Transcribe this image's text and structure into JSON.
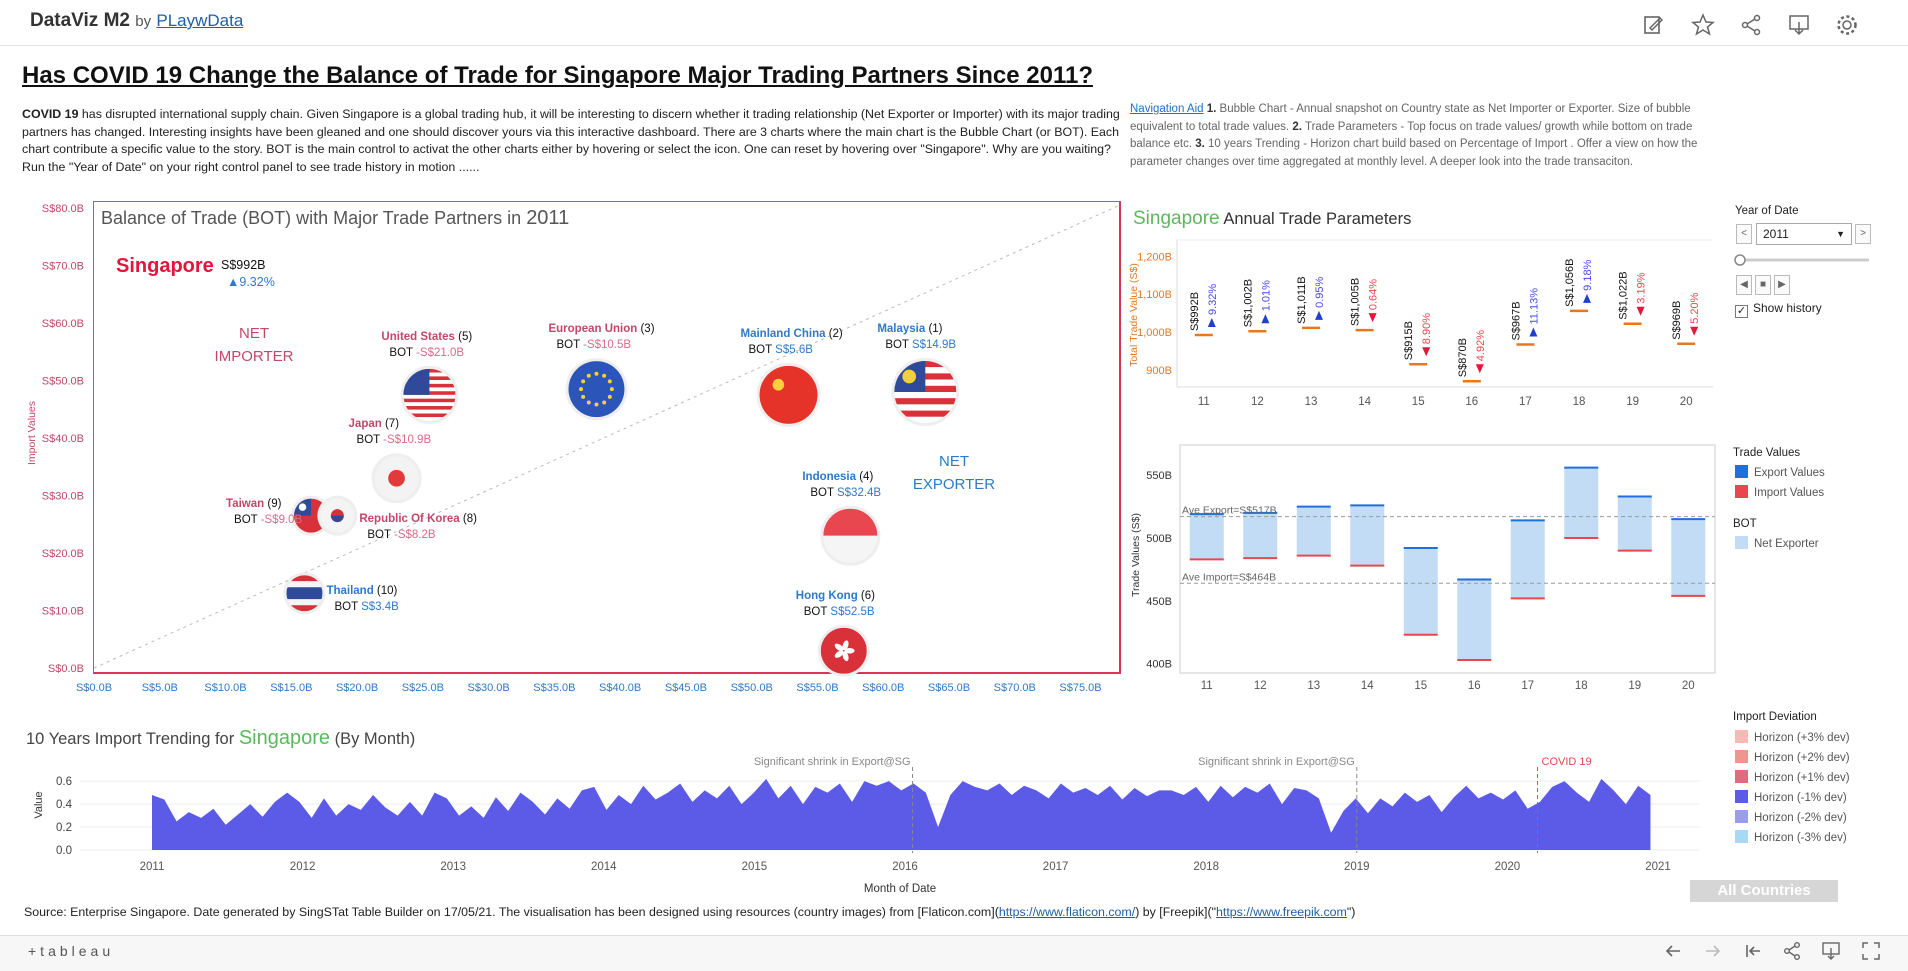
{
  "header": {
    "brand": "DataViz M2",
    "by": "by",
    "author": "PLaywData"
  },
  "dashboard": {
    "title": "Has COVID 19 Change the Balance of Trade for Singapore Major Trading Partners Since 2011?",
    "intro_lead": "COVID 19",
    "intro": " has disrupted international supply chain. Given Singapore  is a global trading hub, it will be interesting to discern whether it trading relationship (Net Exporter or Importer) with its major trading partners has changed.  Interesting insights have been gleaned and one should discover yours via this interactive dashboard.  There are 3 charts where the main chart is the Bubble Chart (or BOT). Each chart contribute a specific value to the story. BOT is the main control to activat the other charts either by hovering or select the icon. One can reset by hovering over \"Singapore\". Why are you waiting?  Run the \"Year of Date\" on your right control panel to see trade history in motion ......",
    "nav_link": "Navigation Aid",
    "nav_n1": "1.",
    "nav_t1": " Bubble Chart - Annual snapshot on Country state as Net Importer or Exporter.  Size of bubble equivalent to total trade values. ",
    "nav_n2": "2.",
    "nav_t2": " Trade Parameters - Top focus on trade values/ growth while bottom on trade balance etc. ",
    "nav_n3": "3.",
    "nav_t3": " 10 years Trending - Horizon chart build based on Percentage of Import . Offer a view on how the parameter changes over time aggregated at monthly level. A deeper look into the trade transaciton.",
    "source_a": "Source: Enterprise Singapore. Date generated by SingSTat Table Builder on 17/05/21. The visualisation has been designed using resources (country images) from [Flaticon.com](",
    "source_u1": "https://www.flaticon.com/",
    "source_b": ") by [Freepik](\"",
    "source_u2": "https://www.freepik.com",
    "source_c": "\")",
    "all_countries": "All Countries"
  },
  "controls": {
    "year_label": "Year of Date",
    "year_value": "2011",
    "show_history": "Show history",
    "check_mark": "✓",
    "prev": "<",
    "next": ">",
    "back": "◀",
    "stop": "■",
    "play": "▶"
  },
  "legends": {
    "trade_values_title": "Trade Values",
    "export": "Export Values",
    "import": "Import Values",
    "bot_title": "BOT",
    "net_exporter": "Net Exporter",
    "import_dev_title": "Import Deviation",
    "horizon": [
      "Horizon (+3% dev)",
      "Horizon (+2% dev)",
      "Horizon (+1% dev)",
      "Horizon (-1% dev)",
      "Horizon (-2% dev)",
      "Horizon (-3% dev)"
    ]
  },
  "colors": {
    "export": "#1f6fdc",
    "import": "#e8474f",
    "net_exporter": "#c3dcf5",
    "horizon": [
      "#f6b9b4",
      "#ef958f",
      "#e06b7e",
      "#5b5be8",
      "#9b9bf0",
      "#a9d8f7"
    ],
    "pink": "#c2476a",
    "blue": "#2e79c9"
  },
  "footer": {
    "logo": "+tableau"
  },
  "chart_data": [
    {
      "type": "scatter",
      "title_prefix": "Balance of Trade (BOT) with Major Trade Partners in",
      "title_year": "2011",
      "ylabel": "Import Values",
      "xlim": [
        0,
        78
      ],
      "ylim": [
        0,
        80
      ],
      "x_ticks": [
        "S$0.0B",
        "S$5.0B",
        "S$10.0B",
        "S$15.0B",
        "S$20.0B",
        "S$25.0B",
        "S$30.0B",
        "S$35.0B",
        "S$40.0B",
        "S$45.0B",
        "S$50.0B",
        "S$55.0B",
        "S$60.0B",
        "S$65.0B",
        "S$70.0B",
        "S$75.0B"
      ],
      "x_tick_values": [
        0,
        5,
        10,
        15,
        20,
        25,
        30,
        35,
        40,
        45,
        50,
        55,
        60,
        65,
        70,
        75
      ],
      "y_ticks": [
        "S$0.0B",
        "S$10.0B",
        "S$20.0B",
        "S$30.0B",
        "S$40.0B",
        "S$50.0B",
        "S$60.0B",
        "S$70.0B",
        "S$80.0B"
      ],
      "y_tick_values": [
        0,
        10,
        20,
        30,
        40,
        50,
        60,
        70,
        80
      ],
      "net_importer": "NET\nIMPORTER",
      "net_exporter": "NET\nEXPORTER",
      "singapore": {
        "name": "Singapore",
        "value": "S$992B",
        "change": "▲9.32%"
      },
      "points": [
        {
          "name": "United States",
          "rank": "(5)",
          "bot": "-S$21.0B",
          "x": 25.5,
          "y": 47.5,
          "flag": "us",
          "side": "importer"
        },
        {
          "name": "European Union",
          "rank": "(3)",
          "bot": "-S$10.5B",
          "x": 38.2,
          "y": 48.5,
          "flag": "eu",
          "side": "importer"
        },
        {
          "name": "Mainland China",
          "rank": "(2)",
          "bot": "S$5.6B",
          "x": 52.8,
          "y": 47.5,
          "flag": "cn",
          "side": "exporter"
        },
        {
          "name": "Malaysia",
          "rank": "(1)",
          "bot": "S$14.9B",
          "x": 63.2,
          "y": 48.0,
          "flag": "my",
          "side": "exporter"
        },
        {
          "name": "Japan",
          "rank": "(7)",
          "bot": "-S$10.9B",
          "x": 23.0,
          "y": 33.0,
          "flag": "jp",
          "side": "importer"
        },
        {
          "name": "Indonesia",
          "rank": "(4)",
          "bot": "S$32.4B",
          "x": 57.5,
          "y": 23.0,
          "flag": "id",
          "side": "exporter"
        },
        {
          "name": "Taiwan",
          "rank": "(9)",
          "bot": "-S$9.0B",
          "x": 16.5,
          "y": 26.5,
          "flag": "tw",
          "side": "importer"
        },
        {
          "name": "Republic Of Korea",
          "rank": "(8)",
          "bot": "-S$8.2B",
          "x": 18.5,
          "y": 26.5,
          "flag": "kr",
          "side": "importer"
        },
        {
          "name": "Thailand",
          "rank": "(10)",
          "bot": "S$3.4B",
          "x": 16.0,
          "y": 13.0,
          "flag": "th",
          "side": "exporter"
        },
        {
          "name": "Hong Kong",
          "rank": "(6)",
          "bot": "S$52.5B",
          "x": 57.0,
          "y": 3.0,
          "flag": "hk",
          "side": "exporter"
        }
      ],
      "bot_prefix": "BOT"
    },
    {
      "type": "scatter",
      "title_country": "Singapore",
      "title": "Annual Trade Parameters",
      "ylabel": "Total Trade Value (S$)",
      "categories": [
        "11",
        "12",
        "13",
        "14",
        "15",
        "16",
        "17",
        "18",
        "19",
        "20"
      ],
      "values": [
        992,
        1002,
        1011,
        1005,
        915,
        870,
        967,
        1056,
        1022,
        969
      ],
      "value_labels": [
        "S$992B",
        "S$1,002B",
        "S$1,011B",
        "S$1,005B",
        "S$915B",
        "S$870B",
        "S$967B",
        "S$1,056B",
        "S$1,022B",
        "S$969B"
      ],
      "growth_labels": [
        "9.32%",
        "1.01%",
        "0.95%",
        "0.64%",
        "8.90%",
        "4.92%",
        "11.13%",
        "9.18%",
        "3.19%",
        "5.20%"
      ],
      "growth_dir": [
        "up",
        "up",
        "up",
        "down",
        "down",
        "down",
        "up",
        "up",
        "down",
        "down"
      ],
      "y_ticks": [
        "900B",
        "1,000B",
        "1,100B",
        "1,200B"
      ],
      "y_tick_values": [
        900,
        1000,
        1100,
        1200
      ],
      "ylim": [
        860,
        1230
      ]
    },
    {
      "type": "bar",
      "ylabel": "Trade Values (S$)",
      "categories": [
        "11",
        "12",
        "13",
        "14",
        "15",
        "16",
        "17",
        "18",
        "19",
        "20"
      ],
      "export": [
        519,
        520,
        525,
        526,
        492,
        467,
        514,
        556,
        533,
        515
      ],
      "import": [
        483,
        484,
        486,
        478,
        423,
        403,
        452,
        500,
        490,
        454
      ],
      "ylim": [
        395,
        570
      ],
      "y_ticks": [
        "400B",
        "450B",
        "500B",
        "550B"
      ],
      "y_tick_values": [
        400,
        450,
        500,
        550
      ],
      "ave_export": 517,
      "ave_import": 464,
      "ave_export_label": "Ave Export=S$517B",
      "ave_import_label": "Ave Import=S$464B"
    },
    {
      "type": "area",
      "title_prefix": "10 Years Import Trending for",
      "title_country": "Singapore",
      "title_suffix": "(By Month)",
      "ylabel": "Value",
      "xlabel": "Month of Date",
      "ylim": [
        0,
        0.68
      ],
      "y_ticks": [
        "0.0",
        "0.2",
        "0.4",
        "0.6"
      ],
      "y_tick_values": [
        0,
        0.2,
        0.4,
        0.6
      ],
      "x_ticks": [
        "2011",
        "2012",
        "2013",
        "2014",
        "2015",
        "2016",
        "2017",
        "2018",
        "2019",
        "2020",
        "2021"
      ],
      "annotations": [
        {
          "text": "Significant shrink in Export@SG",
          "x": 2016.05
        },
        {
          "text": "Significant shrink in Export@SG",
          "x": 2019.0
        },
        {
          "text": "COVID 19",
          "x": 2020.2
        }
      ],
      "values": [
        0.48,
        0.44,
        0.25,
        0.33,
        0.28,
        0.36,
        0.22,
        0.31,
        0.4,
        0.29,
        0.42,
        0.5,
        0.42,
        0.28,
        0.45,
        0.3,
        0.4,
        0.35,
        0.48,
        0.37,
        0.3,
        0.42,
        0.3,
        0.5,
        0.45,
        0.3,
        0.38,
        0.28,
        0.46,
        0.34,
        0.5,
        0.42,
        0.31,
        0.45,
        0.36,
        0.52,
        0.55,
        0.35,
        0.48,
        0.4,
        0.56,
        0.44,
        0.5,
        0.58,
        0.42,
        0.52,
        0.45,
        0.56,
        0.4,
        0.5,
        0.62,
        0.45,
        0.56,
        0.4,
        0.55,
        0.5,
        0.58,
        0.42,
        0.6,
        0.56,
        0.6,
        0.52,
        0.58,
        0.5,
        0.2,
        0.48,
        0.6,
        0.55,
        0.52,
        0.58,
        0.48,
        0.56,
        0.52,
        0.45,
        0.58,
        0.5,
        0.54,
        0.48,
        0.56,
        0.44,
        0.54,
        0.47,
        0.52,
        0.52,
        0.48,
        0.55,
        0.42,
        0.56,
        0.46,
        0.55,
        0.5,
        0.58,
        0.4,
        0.54,
        0.52,
        0.45,
        0.15,
        0.34,
        0.45,
        0.32,
        0.45,
        0.38,
        0.5,
        0.42,
        0.48,
        0.33,
        0.46,
        0.56,
        0.45,
        0.5,
        0.44,
        0.52,
        0.36,
        0.42,
        0.55,
        0.6,
        0.5,
        0.42,
        0.62,
        0.52,
        0.4,
        0.56,
        0.48
      ]
    }
  ]
}
